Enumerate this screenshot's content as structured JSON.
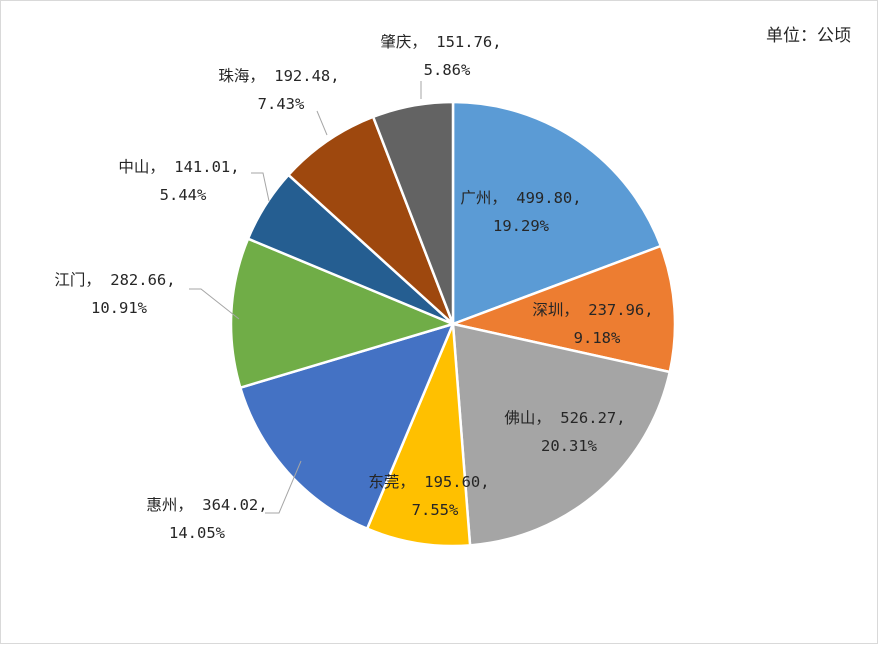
{
  "chart_data": {
    "type": "pie",
    "unit_label": "单位：公顷",
    "start_angle_deg": 0,
    "direction": "clockwise",
    "legend": "none",
    "slices": [
      {
        "name": "广州",
        "value": 499.8,
        "value_text": "499.80",
        "percent_text": "19.29%",
        "color": "#5b9bd5"
      },
      {
        "name": "深圳",
        "value": 237.96,
        "value_text": "237.96",
        "percent_text": "9.18%",
        "color": "#ed7d31"
      },
      {
        "name": "佛山",
        "value": 526.27,
        "value_text": "526.27",
        "percent_text": "20.31%",
        "color": "#a5a5a5"
      },
      {
        "name": "东莞",
        "value": 195.6,
        "value_text": "195.60",
        "percent_text": "7.55%",
        "color": "#ffc000"
      },
      {
        "name": "惠州",
        "value": 364.02,
        "value_text": "364.02",
        "percent_text": "14.05%",
        "color": "#4472c4"
      },
      {
        "name": "江门",
        "value": 282.66,
        "value_text": "282.66",
        "percent_text": "10.91%",
        "color": "#70ad47"
      },
      {
        "name": "中山",
        "value": 141.01,
        "value_text": "141.01",
        "percent_text": "5.44%",
        "color": "#255e91"
      },
      {
        "name": "珠海",
        "value": 192.48,
        "value_text": "192.48",
        "percent_text": "7.43%",
        "color": "#9e480e"
      },
      {
        "name": "肇庆",
        "value": 151.76,
        "value_text": "151.76",
        "percent_text": "5.86%",
        "color": "#636363"
      }
    ]
  }
}
